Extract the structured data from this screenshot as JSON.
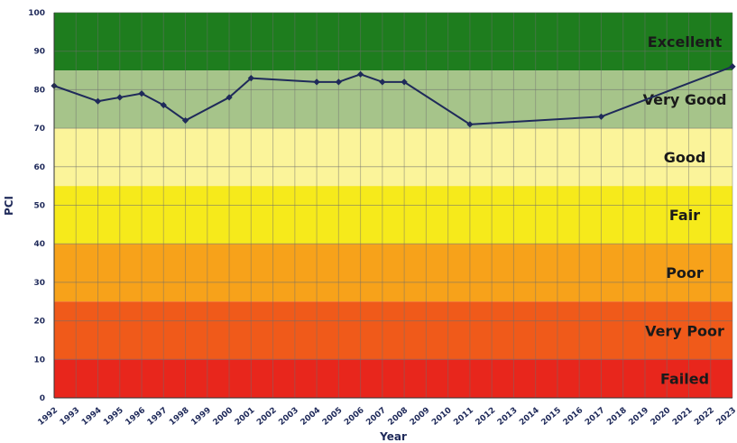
{
  "chart_data": {
    "type": "line",
    "xlabel": "Year",
    "ylabel": "PCI",
    "ylim": [
      0,
      100
    ],
    "yticks": [
      "0",
      "10",
      "20",
      "30",
      "40",
      "50",
      "60",
      "70",
      "80",
      "90",
      "100"
    ],
    "x_categories": [
      "1992",
      "1993",
      "1994",
      "1995",
      "1996",
      "1997",
      "1998",
      "1999",
      "2000",
      "2001",
      "2002",
      "2003",
      "2004",
      "2005",
      "2006",
      "2007",
      "2008",
      "2009",
      "2010",
      "2011",
      "2012",
      "2013",
      "2014",
      "2015",
      "2016",
      "2017",
      "2018",
      "2019",
      "2020",
      "2021",
      "2022",
      "2023"
    ],
    "bands": [
      {
        "label": "Excellent",
        "from": 85,
        "to": 100,
        "color": "#1e7d1e"
      },
      {
        "label": "Very Good",
        "from": 70,
        "to": 85,
        "color": "#a6c48a"
      },
      {
        "label": "Good",
        "from": 55,
        "to": 70,
        "color": "#fbf49a"
      },
      {
        "label": "Fair",
        "from": 40,
        "to": 55,
        "color": "#f6ea1b"
      },
      {
        "label": "Poor",
        "from": 25,
        "to": 40,
        "color": "#f7a21a"
      },
      {
        "label": "Very Poor",
        "from": 10,
        "to": 25,
        "color": "#f05a1a"
      },
      {
        "label": "Failed",
        "from": 0,
        "to": 10,
        "color": "#e8261c"
      }
    ],
    "series": [
      {
        "color": "#1f2a5a",
        "points": [
          {
            "x": "1992",
            "y": 81
          },
          {
            "x": "1994",
            "y": 77
          },
          {
            "x": "1995",
            "y": 78
          },
          {
            "x": "1996",
            "y": 79
          },
          {
            "x": "1997",
            "y": 76
          },
          {
            "x": "1998",
            "y": 72
          },
          {
            "x": "2000",
            "y": 78
          },
          {
            "x": "2001",
            "y": 83
          },
          {
            "x": "2004",
            "y": 82
          },
          {
            "x": "2005",
            "y": 82
          },
          {
            "x": "2006",
            "y": 84
          },
          {
            "x": "2007",
            "y": 82
          },
          {
            "x": "2008",
            "y": 82
          },
          {
            "x": "2011",
            "y": 71
          },
          {
            "x": "2017",
            "y": 73
          },
          {
            "x": "2023",
            "y": 86
          }
        ]
      }
    ]
  }
}
